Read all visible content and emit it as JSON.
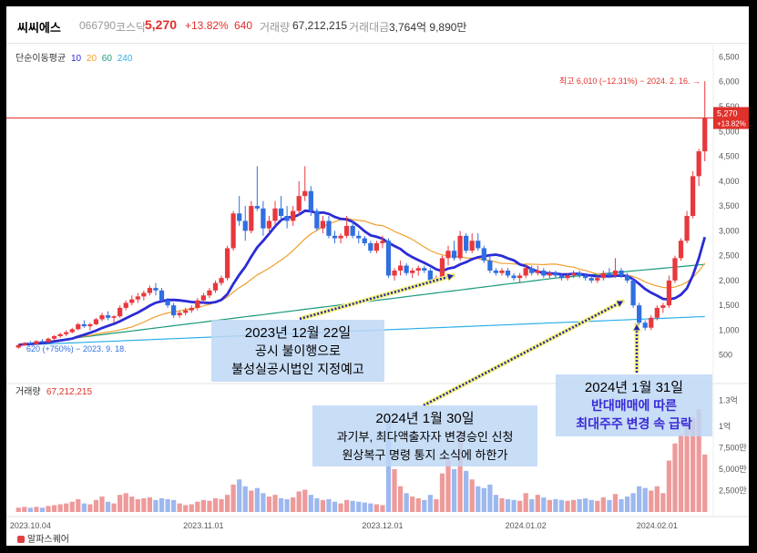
{
  "stock": {
    "name": "씨씨에스",
    "code": "066790",
    "market": "코스닥",
    "price": "5,270",
    "change_pct": "+13.82%",
    "change_abs": "640",
    "volume_label": "거래량",
    "volume_value": "67,212,215",
    "amount_label": "거래대금",
    "amount_value": "3,764억 9,890만"
  },
  "ma_legend": {
    "label": "단순이동평균",
    "items": [
      {
        "period": "10",
        "color": "#2b2bd6"
      },
      {
        "period": "20",
        "color": "#f0a030"
      },
      {
        "period": "60",
        "color": "#1a9a7a"
      },
      {
        "period": "240",
        "color": "#30b0e8"
      }
    ]
  },
  "annotations": {
    "high": "최고 6,010 (−12.31%) − 2024. 2. 16. →",
    "low": "620 (+750%) − 2023. 9. 18.",
    "price_tag": "5,270",
    "price_tag_pct": "+13.82%",
    "volume_label": "거래량",
    "volume_value": "67,212,215",
    "callouts": [
      {
        "lines": [
          "2023년 12월 22일",
          "공시 불이행으로",
          "불성실공시법인 지정예고"
        ]
      },
      {
        "lines": [
          "2024년 1월 30일",
          "과기부, 최다액출자자 변경승인 신청",
          "원상복구 명령 통지 소식에 하한가"
        ]
      },
      {
        "lines": [
          "2024년 1월 31일",
          "반대매매에 따른",
          "최대주주 변경 속 급락"
        ]
      }
    ]
  },
  "footer": {
    "brand": "알파스퀘어"
  },
  "chart_data": {
    "type": "candlestick",
    "price_axis": {
      "ticks": [
        "6,500",
        "6,000",
        "5,500",
        "5,000",
        "4,500",
        "4,000",
        "3,500",
        "3,000",
        "2,500",
        "2,000",
        "1,500",
        "1,000",
        "500"
      ],
      "range": [
        0,
        6600
      ]
    },
    "volume_axis": {
      "ticks": [
        "1.3억",
        "1억",
        "7,500만",
        "5,000만",
        "2,500만"
      ],
      "range": [
        0,
        135000000
      ]
    },
    "x_ticks": [
      "2023.10.04",
      "2023.11.01",
      "2023.12.01",
      "2024.01.02",
      "2024.02.01"
    ],
    "candles_ohlc_volume_million": [
      [
        650,
        720,
        630,
        700,
        5
      ],
      [
        700,
        760,
        680,
        740,
        6
      ],
      [
        740,
        780,
        700,
        720,
        5
      ],
      [
        720,
        800,
        710,
        780,
        6
      ],
      [
        780,
        820,
        740,
        760,
        5
      ],
      [
        760,
        850,
        750,
        830,
        7
      ],
      [
        830,
        900,
        800,
        880,
        8
      ],
      [
        880,
        950,
        850,
        920,
        9
      ],
      [
        920,
        1000,
        880,
        960,
        10
      ],
      [
        960,
        1050,
        940,
        1020,
        12
      ],
      [
        1020,
        1150,
        1000,
        1120,
        15
      ],
      [
        1120,
        1200,
        1050,
        1080,
        10
      ],
      [
        1080,
        1150,
        1000,
        1120,
        9
      ],
      [
        1120,
        1250,
        1100,
        1220,
        14
      ],
      [
        1220,
        1350,
        1180,
        1300,
        18
      ],
      [
        1300,
        1380,
        1200,
        1250,
        12
      ],
      [
        1250,
        1300,
        1150,
        1280,
        10
      ],
      [
        1280,
        1500,
        1250,
        1450,
        20
      ],
      [
        1450,
        1600,
        1400,
        1550,
        22
      ],
      [
        1550,
        1700,
        1500,
        1620,
        18
      ],
      [
        1620,
        1750,
        1550,
        1680,
        15
      ],
      [
        1680,
        1800,
        1600,
        1750,
        16
      ],
      [
        1750,
        1900,
        1700,
        1850,
        17
      ],
      [
        1850,
        1950,
        1700,
        1800,
        14
      ],
      [
        1800,
        1850,
        1550,
        1600,
        16
      ],
      [
        1600,
        1650,
        1450,
        1500,
        15
      ],
      [
        1500,
        1550,
        1250,
        1300,
        14
      ],
      [
        1300,
        1400,
        1250,
        1350,
        10
      ],
      [
        1350,
        1450,
        1300,
        1400,
        8
      ],
      [
        1400,
        1500,
        1350,
        1450,
        9
      ],
      [
        1450,
        1650,
        1400,
        1600,
        12
      ],
      [
        1600,
        1750,
        1550,
        1700,
        14
      ],
      [
        1700,
        1850,
        1650,
        1800,
        13
      ],
      [
        1800,
        2000,
        1750,
        1950,
        16
      ],
      [
        1950,
        2100,
        1900,
        2050,
        15
      ],
      [
        2050,
        2700,
        2000,
        2650,
        20
      ],
      [
        2650,
        3400,
        2600,
        3350,
        32
      ],
      [
        3350,
        3700,
        3100,
        3200,
        38
      ],
      [
        3200,
        3500,
        2800,
        3000,
        30
      ],
      [
        3000,
        3600,
        2950,
        3500,
        25
      ],
      [
        3500,
        4300,
        3400,
        3450,
        28
      ],
      [
        3450,
        3600,
        2900,
        3050,
        22
      ],
      [
        3050,
        3300,
        2950,
        3200,
        18
      ],
      [
        3200,
        3600,
        3100,
        3450,
        20
      ],
      [
        3450,
        3700,
        3200,
        3300,
        16
      ],
      [
        3300,
        3500,
        3050,
        3200,
        15
      ],
      [
        3200,
        3500,
        3100,
        3400,
        17
      ],
      [
        3400,
        4000,
        3300,
        3700,
        24
      ],
      [
        3700,
        4300,
        3600,
        3800,
        26
      ],
      [
        3800,
        3900,
        3300,
        3400,
        20
      ],
      [
        3400,
        3450,
        3000,
        3050,
        16
      ],
      [
        3050,
        3300,
        2950,
        3200,
        14
      ],
      [
        3200,
        3300,
        2850,
        2900,
        15
      ],
      [
        2900,
        3000,
        2750,
        2850,
        12
      ],
      [
        2850,
        2950,
        2750,
        2900,
        10
      ],
      [
        2900,
        3300,
        2850,
        3100,
        14
      ],
      [
        3100,
        3200,
        2850,
        2900,
        13
      ],
      [
        2900,
        3000,
        2750,
        2850,
        12
      ],
      [
        2850,
        2900,
        2700,
        2750,
        11
      ],
      [
        2750,
        2800,
        2550,
        2600,
        10
      ],
      [
        2600,
        2800,
        2550,
        2750,
        9
      ],
      [
        2750,
        2900,
        2650,
        2800,
        8
      ],
      [
        2800,
        2850,
        2050,
        2100,
        110
      ],
      [
        2100,
        2250,
        2000,
        2200,
        50
      ],
      [
        2200,
        2400,
        2100,
        2300,
        30
      ],
      [
        2300,
        2350,
        2100,
        2150,
        22
      ],
      [
        2150,
        2250,
        2050,
        2200,
        18
      ],
      [
        2200,
        2300,
        2100,
        2250,
        16
      ],
      [
        2250,
        2300,
        2150,
        2200,
        14
      ],
      [
        2200,
        2250,
        1950,
        2000,
        20
      ],
      [
        2000,
        2100,
        1950,
        2050,
        15
      ],
      [
        2050,
        2500,
        2000,
        2450,
        45
      ],
      [
        2450,
        2700,
        2300,
        2600,
        60
      ],
      [
        2600,
        2800,
        2400,
        2450,
        50
      ],
      [
        2450,
        3000,
        2400,
        2900,
        95
      ],
      [
        2900,
        2950,
        2550,
        2600,
        48
      ],
      [
        2600,
        2950,
        2550,
        2800,
        38
      ],
      [
        2800,
        2950,
        2600,
        2650,
        30
      ],
      [
        2650,
        2700,
        2350,
        2400,
        28
      ],
      [
        2400,
        2500,
        2150,
        2200,
        32
      ],
      [
        2200,
        2250,
        2100,
        2150,
        20
      ],
      [
        2150,
        2250,
        2100,
        2200,
        16
      ],
      [
        2200,
        2250,
        2050,
        2100,
        15
      ],
      [
        2100,
        2150,
        2000,
        2050,
        14
      ],
      [
        2050,
        2150,
        1950,
        2100,
        13
      ],
      [
        2100,
        2300,
        2050,
        2250,
        22
      ],
      [
        2250,
        2300,
        2100,
        2150,
        15
      ],
      [
        2150,
        2300,
        2100,
        2200,
        20
      ],
      [
        2200,
        2250,
        2050,
        2100,
        17
      ],
      [
        2100,
        2200,
        2050,
        2150,
        14
      ],
      [
        2150,
        2200,
        2050,
        2100,
        15
      ],
      [
        2100,
        2150,
        2000,
        2050,
        14
      ],
      [
        2050,
        2150,
        2000,
        2100,
        13
      ],
      [
        2100,
        2200,
        2050,
        2150,
        14
      ],
      [
        2150,
        2200,
        2050,
        2100,
        15
      ],
      [
        2100,
        2150,
        2000,
        2050,
        16
      ],
      [
        2050,
        2100,
        1950,
        2000,
        14
      ],
      [
        2000,
        2100,
        1950,
        2050,
        13
      ],
      [
        2050,
        2200,
        2000,
        2150,
        17
      ],
      [
        2150,
        2250,
        2050,
        2100,
        14
      ],
      [
        2100,
        2450,
        2050,
        2200,
        21
      ],
      [
        2200,
        2250,
        2050,
        2100,
        15
      ],
      [
        2100,
        2150,
        1950,
        2000,
        18
      ],
      [
        2000,
        2050,
        1450,
        1500,
        22
      ],
      [
        1500,
        1550,
        1100,
        1150,
        30
      ],
      [
        1150,
        1200,
        1000,
        1050,
        28
      ],
      [
        1050,
        1300,
        1000,
        1250,
        25
      ],
      [
        1250,
        1500,
        1200,
        1450,
        30
      ],
      [
        1450,
        1550,
        1350,
        1500,
        22
      ],
      [
        1500,
        2100,
        1450,
        2000,
        60
      ],
      [
        2000,
        2500,
        1950,
        2450,
        80
      ],
      [
        2450,
        2850,
        2400,
        2800,
        90
      ],
      [
        2800,
        3400,
        2750,
        3300,
        100
      ],
      [
        3300,
        4200,
        3250,
        4100,
        110
      ],
      [
        4100,
        4650,
        3900,
        4600,
        120
      ],
      [
        4600,
        6010,
        4400,
        5270,
        67
      ]
    ]
  }
}
